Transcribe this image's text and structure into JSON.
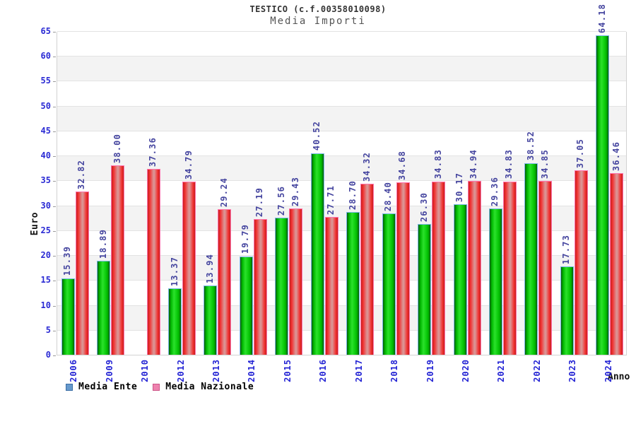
{
  "header": {
    "title": "TESTICO (c.f.00358010098)",
    "subtitle": "Media Importi"
  },
  "chart_data": {
    "type": "bar",
    "title": "TESTICO (c.f.00358010098)",
    "subtitle": "Media Importi",
    "xlabel": "Anno",
    "ylabel": "Euro",
    "ylim": [
      0,
      65
    ],
    "ytick_step": 5,
    "grid": "horizontal-alternating-bands",
    "legend_position": "bottom-left",
    "categories": [
      "2006",
      "2009",
      "2010",
      "2012",
      "2013",
      "2014",
      "2015",
      "2016",
      "2017",
      "2018",
      "2019",
      "2020",
      "2021",
      "2022",
      "2023",
      "2024"
    ],
    "series": [
      {
        "name": "Media Ente",
        "values": [
          15.39,
          18.89,
          null,
          13.37,
          13.94,
          19.79,
          27.56,
          40.52,
          28.7,
          28.4,
          26.3,
          30.17,
          29.36,
          38.52,
          17.73,
          64.18
        ]
      },
      {
        "name": "Media Nazionale",
        "values": [
          32.82,
          38.0,
          37.36,
          34.79,
          29.24,
          27.19,
          29.43,
          27.71,
          34.32,
          34.68,
          34.83,
          34.94,
          34.83,
          34.85,
          37.05,
          36.46
        ]
      }
    ]
  },
  "colors": {
    "ente_bar": "#00b900",
    "ente_bar_edge": "#7db7e8",
    "nazionale_bar": "#f23030",
    "nazionale_bar_edge": "#ff74ad",
    "legend_ente_swatch": "#6699cc",
    "legend_nazionale_swatch": "#ee82ae",
    "value_label": "#45459f",
    "axis_tick_label": "#2a2ad4",
    "band_gray": "#f3f3f3",
    "band_white": "#ffffff"
  }
}
